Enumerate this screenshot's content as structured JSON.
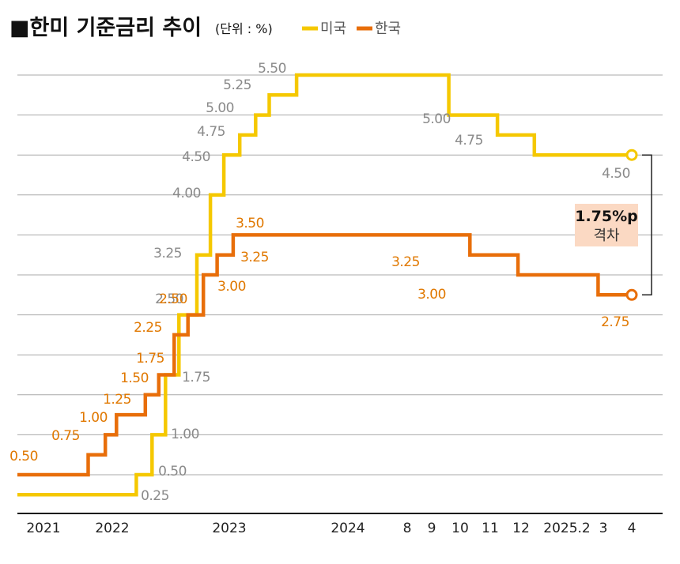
{
  "chart_data": {
    "type": "line",
    "line_style": "step",
    "title": "■한미 기준금리 추이",
    "unit": "(단위 : %)",
    "ylim": [
      0,
      5.75
    ],
    "y_gridlines": [
      0.5,
      1.0,
      1.5,
      2.0,
      2.5,
      3.0,
      3.5,
      4.0,
      4.5,
      5.0,
      5.5
    ],
    "grid": true,
    "legend": "top",
    "x_ticks": [
      "2021",
      "2022",
      "2023",
      "2024",
      "8",
      "9",
      "10",
      "11",
      "12",
      "2025.2",
      "3",
      "4"
    ],
    "series": [
      {
        "name": "미국",
        "color": "#f5c800",
        "steps": [
          {
            "x": "2021-01-01",
            "y": 0.25
          },
          {
            "x": "2022-03-17",
            "y": 0.5
          },
          {
            "x": "2022-05-05",
            "y": 1.0
          },
          {
            "x": "2022-06-16",
            "y": 1.75
          },
          {
            "x": "2022-07-28",
            "y": 2.5
          },
          {
            "x": "2022-09-22",
            "y": 3.25
          },
          {
            "x": "2022-11-03",
            "y": 4.0
          },
          {
            "x": "2022-12-15",
            "y": 4.5
          },
          {
            "x": "2023-02-02",
            "y": 4.75
          },
          {
            "x": "2023-03-23",
            "y": 5.0
          },
          {
            "x": "2023-05-04",
            "y": 5.25
          },
          {
            "x": "2023-07-27",
            "y": 5.5
          },
          {
            "x": "2024-09-19",
            "y": 5.0
          },
          {
            "x": "2024-11-08",
            "y": 4.75
          },
          {
            "x": "2024-12-19",
            "y": 4.5
          },
          {
            "x": "2025-04-01",
            "y": 4.5
          }
        ],
        "labels": [
          "0.25",
          "0.50",
          "1.00",
          "1.75",
          "2.50",
          "3.25",
          "4.00",
          "4.50",
          "4.75",
          "5.00",
          "5.25",
          "5.50",
          "5.00",
          "4.75",
          "4.50"
        ]
      },
      {
        "name": "한국",
        "color": "#e86e0a",
        "steps": [
          {
            "x": "2021-01-01",
            "y": 0.5
          },
          {
            "x": "2021-08-26",
            "y": 0.75
          },
          {
            "x": "2021-11-25",
            "y": 1.0
          },
          {
            "x": "2022-01-14",
            "y": 1.25
          },
          {
            "x": "2022-04-14",
            "y": 1.5
          },
          {
            "x": "2022-05-26",
            "y": 1.75
          },
          {
            "x": "2022-07-13",
            "y": 2.25
          },
          {
            "x": "2022-08-25",
            "y": 2.5
          },
          {
            "x": "2022-10-12",
            "y": 3.0
          },
          {
            "x": "2022-11-24",
            "y": 3.25
          },
          {
            "x": "2023-01-13",
            "y": 3.5
          },
          {
            "x": "2024-10-11",
            "y": 3.25
          },
          {
            "x": "2024-11-28",
            "y": 3.0
          },
          {
            "x": "2025-02-25",
            "y": 2.75
          },
          {
            "x": "2025-04-01",
            "y": 2.75
          }
        ],
        "labels": [
          "0.50",
          "0.75",
          "1.00",
          "1.25",
          "1.50",
          "1.75",
          "2.25",
          "2.50",
          "3.00",
          "3.25",
          "3.50",
          "3.25",
          "3.00",
          "2.75"
        ]
      }
    ],
    "annotation": {
      "value": "1.75%p",
      "label": "격차",
      "highlight_color": "#fbd9c3"
    }
  }
}
